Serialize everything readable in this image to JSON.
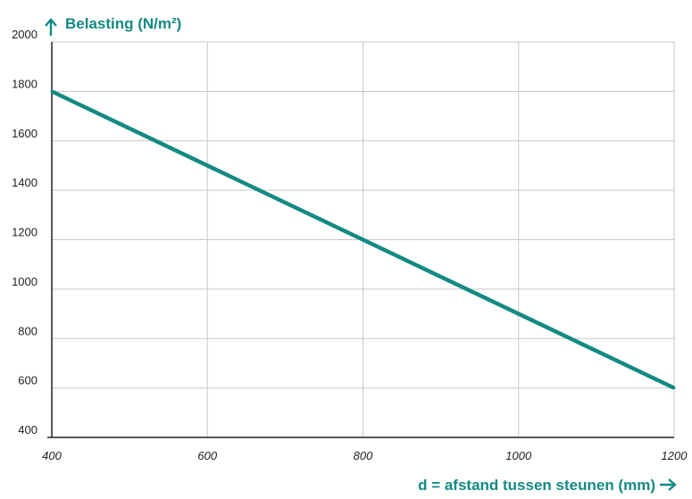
{
  "chart_data": {
    "type": "line",
    "title": "",
    "ylabel": "Belasting (N/m²)",
    "xlabel": "d = afstand tussen steunen (mm)",
    "xlim": [
      400,
      1200
    ],
    "ylim": [
      400,
      2000
    ],
    "x_ticks": [
      400,
      600,
      800,
      1000,
      1200
    ],
    "y_ticks": [
      400,
      600,
      800,
      1000,
      1200,
      1400,
      1600,
      1800,
      2000
    ],
    "grid": true,
    "series": [
      {
        "x": [
          400,
          600,
          800,
          1000,
          1200
        ],
        "y": [
          1800,
          1500,
          1200,
          900,
          600
        ]
      }
    ]
  },
  "colors": {
    "line": "#138a82",
    "title": "#138a82",
    "grid": "#c8c8c8",
    "axis": "#222222"
  },
  "icons": {
    "y_arrow": "arrow-up-icon",
    "x_arrow": "arrow-right-icon"
  }
}
